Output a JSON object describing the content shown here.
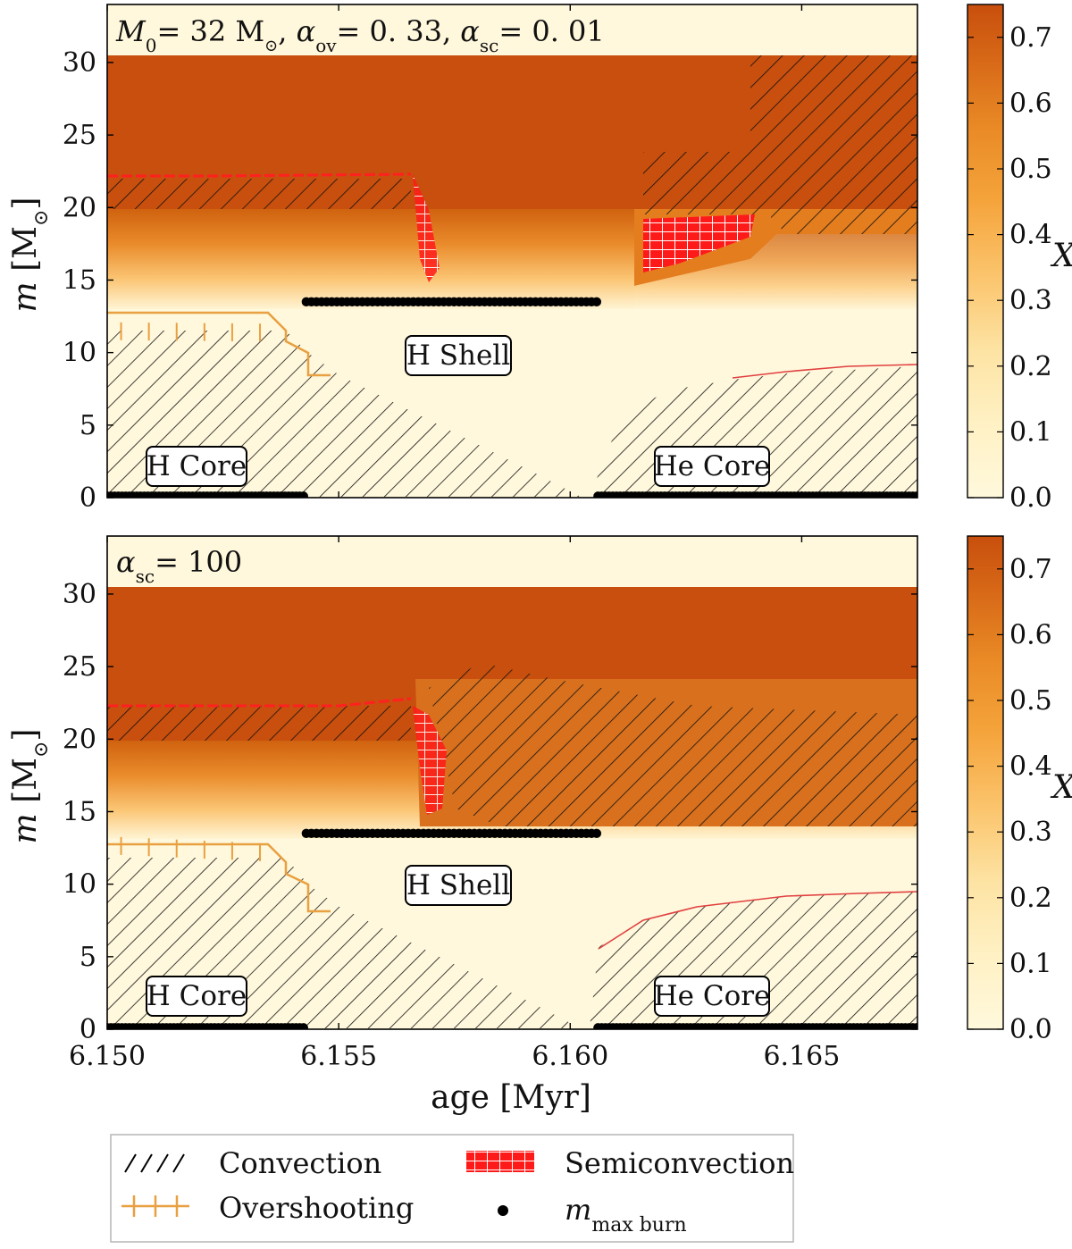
{
  "chart_data": [
    {
      "type": "heatmap",
      "panel": "top",
      "title": "M0 = 32 M⊙, αov = 0.33, αsc = 0.01",
      "title_parts": {
        "m0": "M",
        "m0_sub": "0",
        "m0_val": "= 32 M",
        "ov": "α",
        "ov_sub": "ov",
        "ov_val": "= 0. 33,",
        "sc": "α",
        "sc_sub": "sc",
        "sc_val": "= 0. 01"
      },
      "xlim": [
        6.15,
        6.1675
      ],
      "ylim": [
        0,
        34
      ],
      "ylabel": "m [M⊙]",
      "yticks": [
        0,
        5,
        10,
        15,
        20,
        25,
        30
      ],
      "xticks": [
        6.15,
        6.155,
        6.16,
        6.165
      ],
      "surface_mass": 30.9,
      "annotations": [
        "H Core",
        "H Shell",
        "He Core"
      ],
      "envelope_X": 0.72,
      "convective_envelope_bottom": [
        [
          6.15,
          20.0
        ],
        [
          6.1565,
          20.0
        ],
        [
          6.1567,
          22.5
        ]
      ],
      "overshoot_boundary": [
        [
          6.15,
          11.6
        ],
        [
          6.1535,
          11.5
        ],
        [
          6.1542,
          8.3
        ]
      ],
      "h_core_convective_top": [
        [
          6.15,
          11.5
        ],
        [
          6.1535,
          11.3
        ],
        [
          6.156,
          6.0
        ],
        [
          6.158,
          1.5
        ],
        [
          6.1595,
          0.0
        ]
      ],
      "he_core_convective_top": [
        [
          6.1595,
          0.0
        ],
        [
          6.161,
          3.0
        ],
        [
          6.162,
          6.0
        ],
        [
          6.1635,
          7.8
        ],
        [
          6.1675,
          8.3
        ]
      ],
      "h_shell_burning": {
        "x": [
          6.1543,
          6.1606
        ],
        "m": 13.5
      },
      "h_core_burning": {
        "x": [
          6.15,
          6.1543
        ],
        "m": 0.1
      },
      "he_core_burning": {
        "x": [
          6.1606,
          6.1675
        ],
        "m": 0.1
      }
    },
    {
      "type": "heatmap",
      "panel": "bottom",
      "title": "αsc = 100",
      "title_parts": {
        "sc": "α",
        "sc_sub": "sc",
        "sc_val": "= 100"
      },
      "xlim": [
        6.15,
        6.1675
      ],
      "ylim": [
        0,
        34
      ],
      "xlabel": "age [Myr]",
      "ylabel": "m [M⊙]",
      "yticks": [
        0,
        5,
        10,
        15,
        20,
        25,
        30
      ],
      "xticks": [
        6.15,
        6.155,
        6.16,
        6.165
      ],
      "xticklabels": [
        "6.150",
        "6.155",
        "6.160",
        "6.165"
      ],
      "surface_mass": 30.9,
      "annotations": [
        "H Core",
        "H Shell",
        "He Core"
      ],
      "envelope_X": 0.72,
      "overshoot_boundary": [
        [
          6.15,
          12.8
        ],
        [
          6.1535,
          12.3
        ],
        [
          6.1545,
          8.0
        ]
      ],
      "h_core_convective_top": [
        [
          6.15,
          12.5
        ],
        [
          6.1535,
          12.0
        ],
        [
          6.156,
          6.0
        ],
        [
          6.158,
          1.5
        ],
        [
          6.1595,
          0.0
        ]
      ],
      "he_core_convective_top": [
        [
          6.1595,
          0.0
        ],
        [
          6.1612,
          5.0
        ],
        [
          6.163,
          7.8
        ],
        [
          6.1675,
          9.5
        ]
      ],
      "h_shell_burning": {
        "x": [
          6.1543,
          6.1606
        ],
        "m": 13.5
      },
      "h_core_burning": {
        "x": [
          6.15,
          6.1543
        ],
        "m": 0.1
      },
      "he_core_burning": {
        "x": [
          6.1606,
          6.1675
        ],
        "m": 0.1
      }
    }
  ],
  "colorbar": {
    "label": "X",
    "range": [
      0.0,
      0.75
    ],
    "ticks": [
      "0.0",
      "0.1",
      "0.2",
      "0.3",
      "0.4",
      "0.5",
      "0.6",
      "0.7"
    ],
    "colors": [
      "#fff8dc",
      "#fde3a3",
      "#fbb85c",
      "#f19a33",
      "#e27a1e",
      "#c84f0d"
    ]
  },
  "legend": {
    "items": [
      "Convection",
      "Semiconvection",
      "Overshooting",
      "m",
      "max burn"
    ],
    "convection": "Convection",
    "semiconvection": "Semiconvection",
    "overshooting": "Overshooting",
    "mmax": "m",
    "mmax_sub": "max burn"
  },
  "colors": {
    "convection_hatch": "#000000",
    "semiconvection": "#ff0000",
    "overshoot": "#e8a040",
    "burn": "#000000"
  }
}
